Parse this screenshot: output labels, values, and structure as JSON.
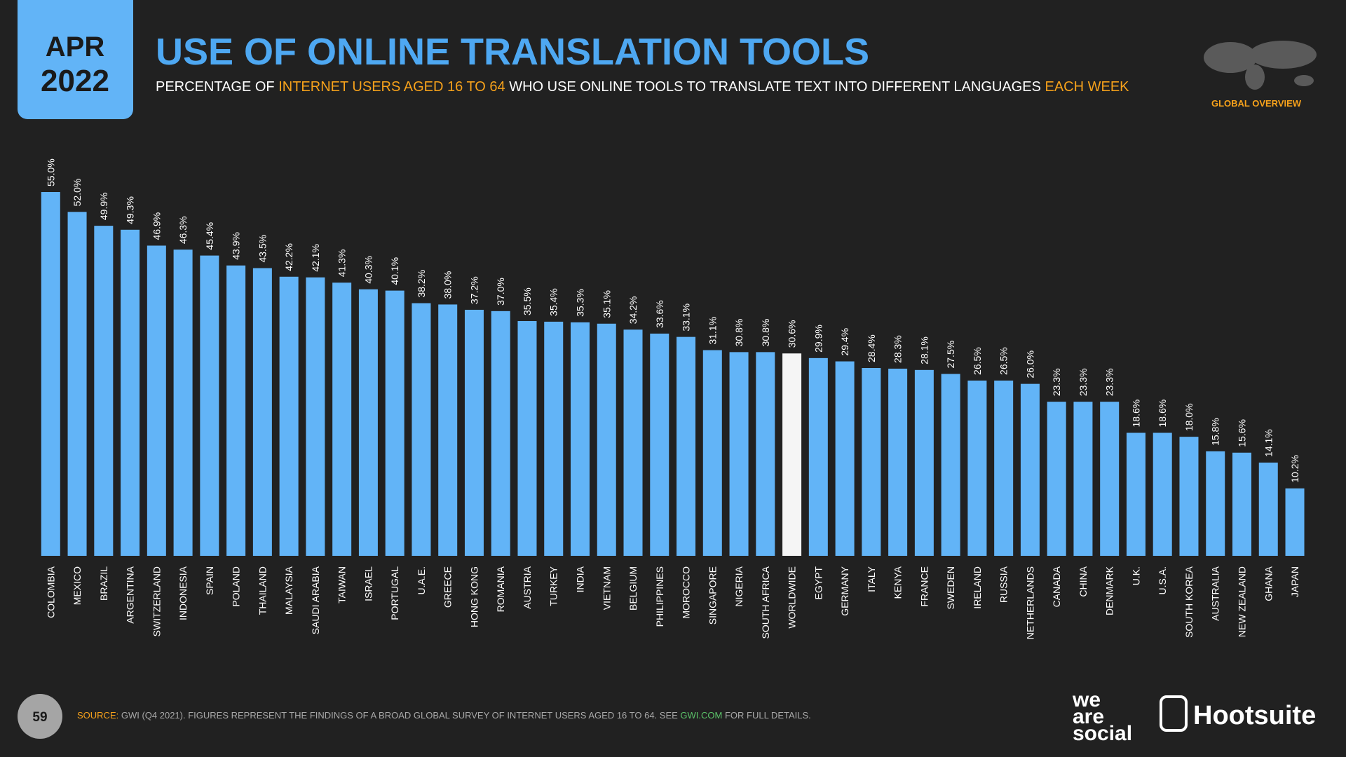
{
  "date_box": {
    "month": "APR",
    "year": "2022"
  },
  "badge": "GLOBAL OVERVIEW",
  "chart_data": {
    "type": "bar",
    "title": "USE OF ONLINE TRANSLATION TOOLS",
    "subtitle": [
      {
        "text": "PERCENTAGE OF ",
        "color": "#ffffff"
      },
      {
        "text": "INTERNET USERS AGED 16 TO 64",
        "color": "#f7a21b"
      },
      {
        "text": " WHO USE ONLINE TOOLS TO TRANSLATE TEXT INTO DIFFERENT LANGUAGES ",
        "color": "#ffffff"
      },
      {
        "text": "EACH WEEK",
        "color": "#f7a21b"
      }
    ],
    "categories": [
      "COLOMBIA",
      "MEXICO",
      "BRAZIL",
      "ARGENTINA",
      "SWITZERLAND",
      "INDONESIA",
      "SPAIN",
      "POLAND",
      "THAILAND",
      "MALAYSIA",
      "SAUDI ARABIA",
      "TAIWAN",
      "ISRAEL",
      "PORTUGAL",
      "U.A.E.",
      "GREECE",
      "HONG KONG",
      "ROMANIA",
      "AUSTRIA",
      "TURKEY",
      "INDIA",
      "VIETNAM",
      "BELGIUM",
      "PHILIPPINES",
      "MOROCCO",
      "SINGAPORE",
      "NIGERIA",
      "SOUTH AFRICA",
      "WORLDWIDE",
      "EGYPT",
      "GERMANY",
      "ITALY",
      "KENYA",
      "FRANCE",
      "SWEDEN",
      "IRELAND",
      "RUSSIA",
      "NETHERLANDS",
      "CANADA",
      "CHINA",
      "DENMARK",
      "U.K.",
      "U.S.A.",
      "SOUTH KOREA",
      "AUSTRALIA",
      "NEW ZEALAND",
      "GHANA",
      "JAPAN"
    ],
    "values": [
      55.0,
      52.0,
      49.9,
      49.3,
      46.9,
      46.3,
      45.4,
      43.9,
      43.5,
      42.2,
      42.1,
      41.3,
      40.3,
      40.1,
      38.2,
      38.0,
      37.2,
      37.0,
      35.5,
      35.4,
      35.3,
      35.1,
      34.2,
      33.6,
      33.1,
      31.1,
      30.8,
      30.8,
      30.6,
      29.9,
      29.4,
      28.4,
      28.3,
      28.1,
      27.5,
      26.5,
      26.5,
      26.0,
      23.3,
      23.3,
      23.3,
      18.6,
      18.6,
      18.0,
      15.8,
      15.6,
      14.1,
      10.2
    ],
    "value_labels": [
      "55.0%",
      "52.0%",
      "49.9%",
      "49.3%",
      "46.9%",
      "46.3%",
      "45.4%",
      "43.9%",
      "43.5%",
      "42.2%",
      "42.1%",
      "41.3%",
      "40.3%",
      "40.1%",
      "38.2%",
      "38.0%",
      "37.2%",
      "37.0%",
      "35.5%",
      "35.4%",
      "35.3%",
      "35.1%",
      "34.2%",
      "33.6%",
      "33.1%",
      "31.1%",
      "30.8%",
      "30.8%",
      "30.6%",
      "29.9%",
      "29.4%",
      "28.4%",
      "28.3%",
      "28.1%",
      "27.5%",
      "26.5%",
      "26.5%",
      "26.0%",
      "23.3%",
      "23.3%",
      "23.3%",
      "18.6%",
      "18.6%",
      "18.0%",
      "15.8%",
      "15.6%",
      "14.1%",
      "10.2%"
    ],
    "colors": [
      "#62b4f7",
      "#62b4f7",
      "#62b4f7",
      "#62b4f7",
      "#62b4f7",
      "#62b4f7",
      "#62b4f7",
      "#62b4f7",
      "#62b4f7",
      "#62b4f7",
      "#62b4f7",
      "#62b4f7",
      "#62b4f7",
      "#62b4f7",
      "#62b4f7",
      "#62b4f7",
      "#62b4f7",
      "#62b4f7",
      "#62b4f7",
      "#62b4f7",
      "#62b4f7",
      "#62b4f7",
      "#62b4f7",
      "#62b4f7",
      "#62b4f7",
      "#62b4f7",
      "#62b4f7",
      "#62b4f7",
      "#f5f5f5",
      "#62b4f7",
      "#62b4f7",
      "#62b4f7",
      "#62b4f7",
      "#62b4f7",
      "#62b4f7",
      "#62b4f7",
      "#62b4f7",
      "#62b4f7",
      "#62b4f7",
      "#62b4f7",
      "#62b4f7",
      "#62b4f7",
      "#62b4f7",
      "#62b4f7",
      "#62b4f7",
      "#62b4f7",
      "#62b4f7",
      "#62b4f7"
    ],
    "ylim": [
      0,
      55
    ]
  },
  "footer": {
    "page": "59",
    "source": [
      {
        "text": "SOURCE: ",
        "color": "#f7a21b"
      },
      {
        "text": "GWI (Q4 2021). FIGURES REPRESENT THE FINDINGS OF A BROAD GLOBAL SURVEY OF INTERNET USERS AGED 16 TO 64. SEE ",
        "color": "#a8a8a8"
      },
      {
        "text": "GWI.COM",
        "color": "#5cc46a"
      },
      {
        "text": " FOR FULL DETAILS.",
        "color": "#a8a8a8"
      }
    ]
  },
  "logos": {
    "we_are_social": [
      "we",
      "are",
      "social"
    ],
    "hootsuite": "Hootsuite"
  }
}
